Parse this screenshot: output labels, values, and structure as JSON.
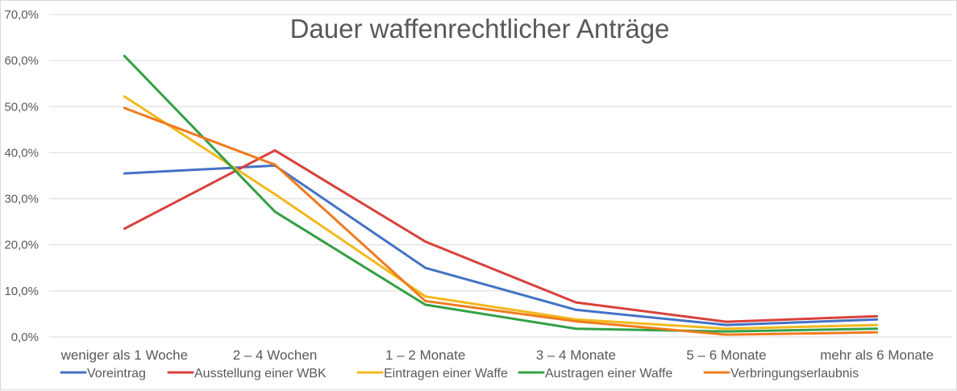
{
  "chart_data": {
    "type": "line",
    "title": "Dauer waffenrechtlicher Anträge",
    "xlabel": "",
    "ylabel": "",
    "ylim": [
      0,
      70
    ],
    "y_ticks": [
      "0,0%",
      "10,0%",
      "20,0%",
      "30,0%",
      "40,0%",
      "50,0%",
      "60,0%",
      "70,0%"
    ],
    "y_tick_values": [
      0,
      10,
      20,
      30,
      40,
      50,
      60,
      70
    ],
    "categories": [
      "weniger als 1 Woche",
      "2 – 4 Wochen",
      "1 – 2 Monate",
      "3 – 4 Monate",
      "5 – 6 Monate",
      "mehr als 6 Monate"
    ],
    "grid": true,
    "legend_position": "bottom",
    "series": [
      {
        "name": "Voreintrag",
        "color": "#4472c4",
        "values": [
          35.5,
          37.2,
          15.0,
          5.9,
          2.6,
          3.8
        ]
      },
      {
        "name": "Ausstellung einer WBK",
        "color": "#d9413b",
        "values": [
          23.5,
          40.5,
          20.7,
          7.5,
          3.3,
          4.5
        ]
      },
      {
        "name": "Eintragen einer Waffe",
        "color": "#f2b81c",
        "values": [
          52.2,
          31.0,
          8.8,
          3.8,
          1.8,
          2.6
        ]
      },
      {
        "name": "Austragen einer Waffe",
        "color": "#34a046",
        "values": [
          61.0,
          27.2,
          7.0,
          1.8,
          1.2,
          1.8
        ]
      },
      {
        "name": "Verbringungserlaubnis",
        "color": "#f07b1e",
        "values": [
          49.7,
          37.4,
          7.8,
          3.4,
          0.5,
          1.0
        ]
      }
    ]
  }
}
